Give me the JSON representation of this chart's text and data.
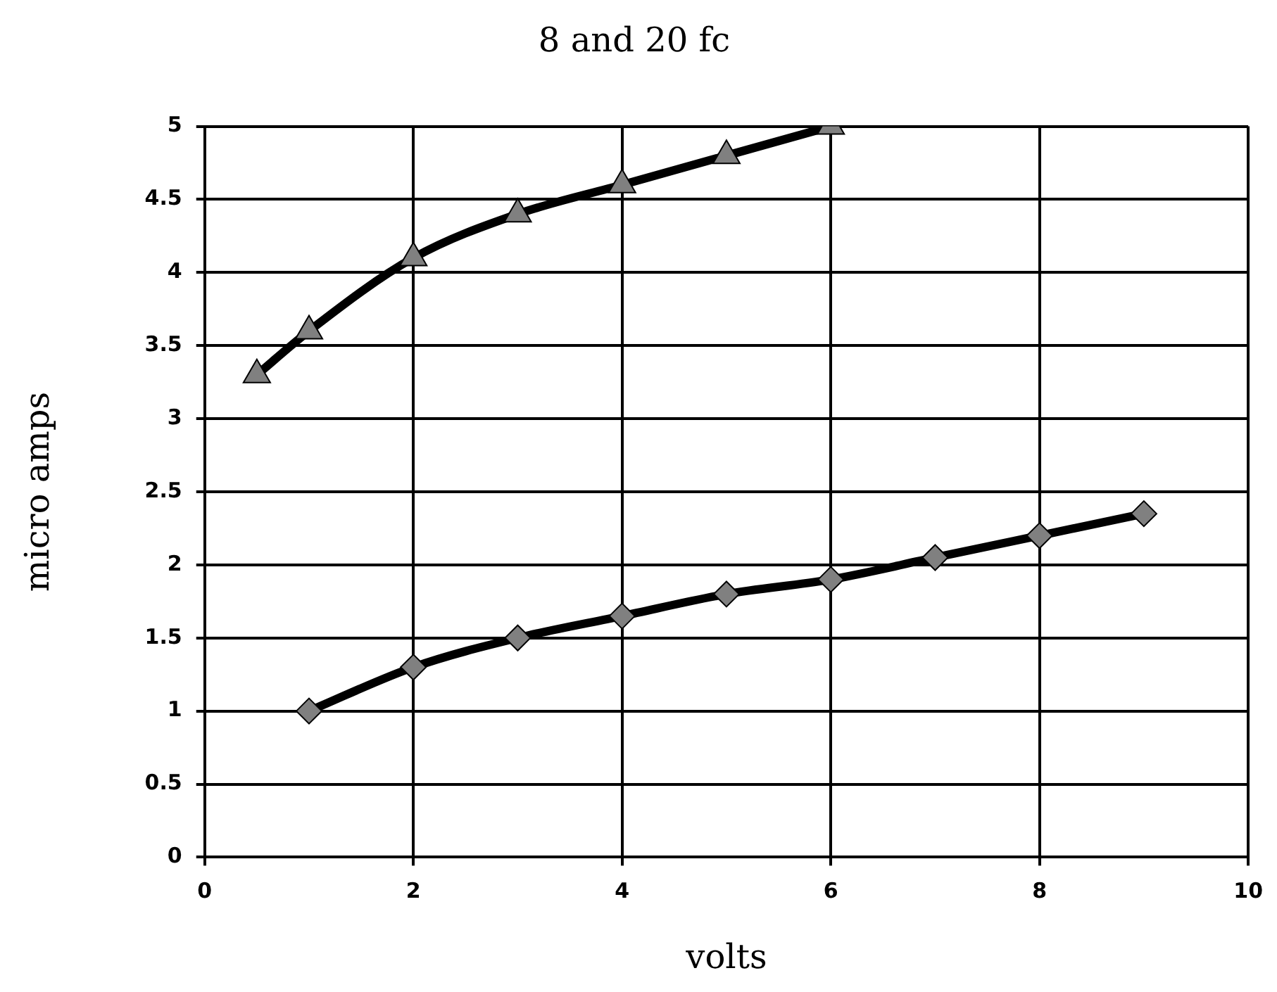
{
  "chart_data": {
    "type": "line",
    "title": "8 and 20 fc",
    "xlabel": "volts",
    "ylabel": "micro amps",
    "xlim": [
      0,
      10
    ],
    "xticks": [
      0,
      2,
      4,
      6,
      8,
      10
    ],
    "ylim": [
      0,
      5
    ],
    "yticks": [
      0,
      0.5,
      1,
      1.5,
      2,
      2.5,
      3,
      3.5,
      4,
      4.5,
      5
    ],
    "grid": true,
    "legend": false,
    "line_style": "solid",
    "series": [
      {
        "color": "#000000",
        "marker": "triangle",
        "x": [
          0.5,
          1,
          2,
          3,
          4,
          5,
          6
        ],
        "values": [
          3.3,
          3.6,
          4.1,
          4.4,
          4.6,
          4.8,
          5.0
        ]
      },
      {
        "color": "#000000",
        "marker": "diamond",
        "x": [
          1,
          2,
          3,
          4,
          5,
          6,
          7,
          8,
          9
        ],
        "values": [
          1.0,
          1.3,
          1.5,
          1.65,
          1.8,
          1.9,
          2.05,
          2.2,
          2.35
        ]
      }
    ]
  }
}
